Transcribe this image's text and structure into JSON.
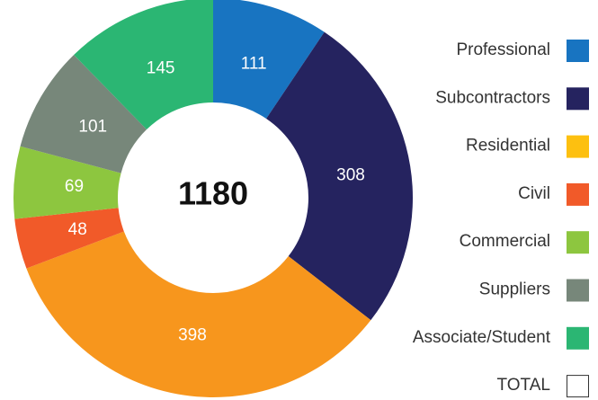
{
  "chart_data": {
    "type": "donut",
    "categories": [
      "Professional",
      "Subcontractors",
      "Residential",
      "Civil",
      "Commercial",
      "Suppliers",
      "Associate/Student"
    ],
    "values": [
      111,
      308,
      398,
      48,
      69,
      101,
      145
    ],
    "colors": [
      "#1874c1",
      "#25235f",
      "#f7961d",
      "#f15a29",
      "#8dc63f",
      "#77877a",
      "#2bb673"
    ],
    "legend_colors": [
      "#1874c1",
      "#25235f",
      "#fdc010",
      "#f15a29",
      "#8dc63f",
      "#77877a",
      "#2bb673"
    ],
    "total": 1180,
    "total_label": "TOTAL"
  }
}
